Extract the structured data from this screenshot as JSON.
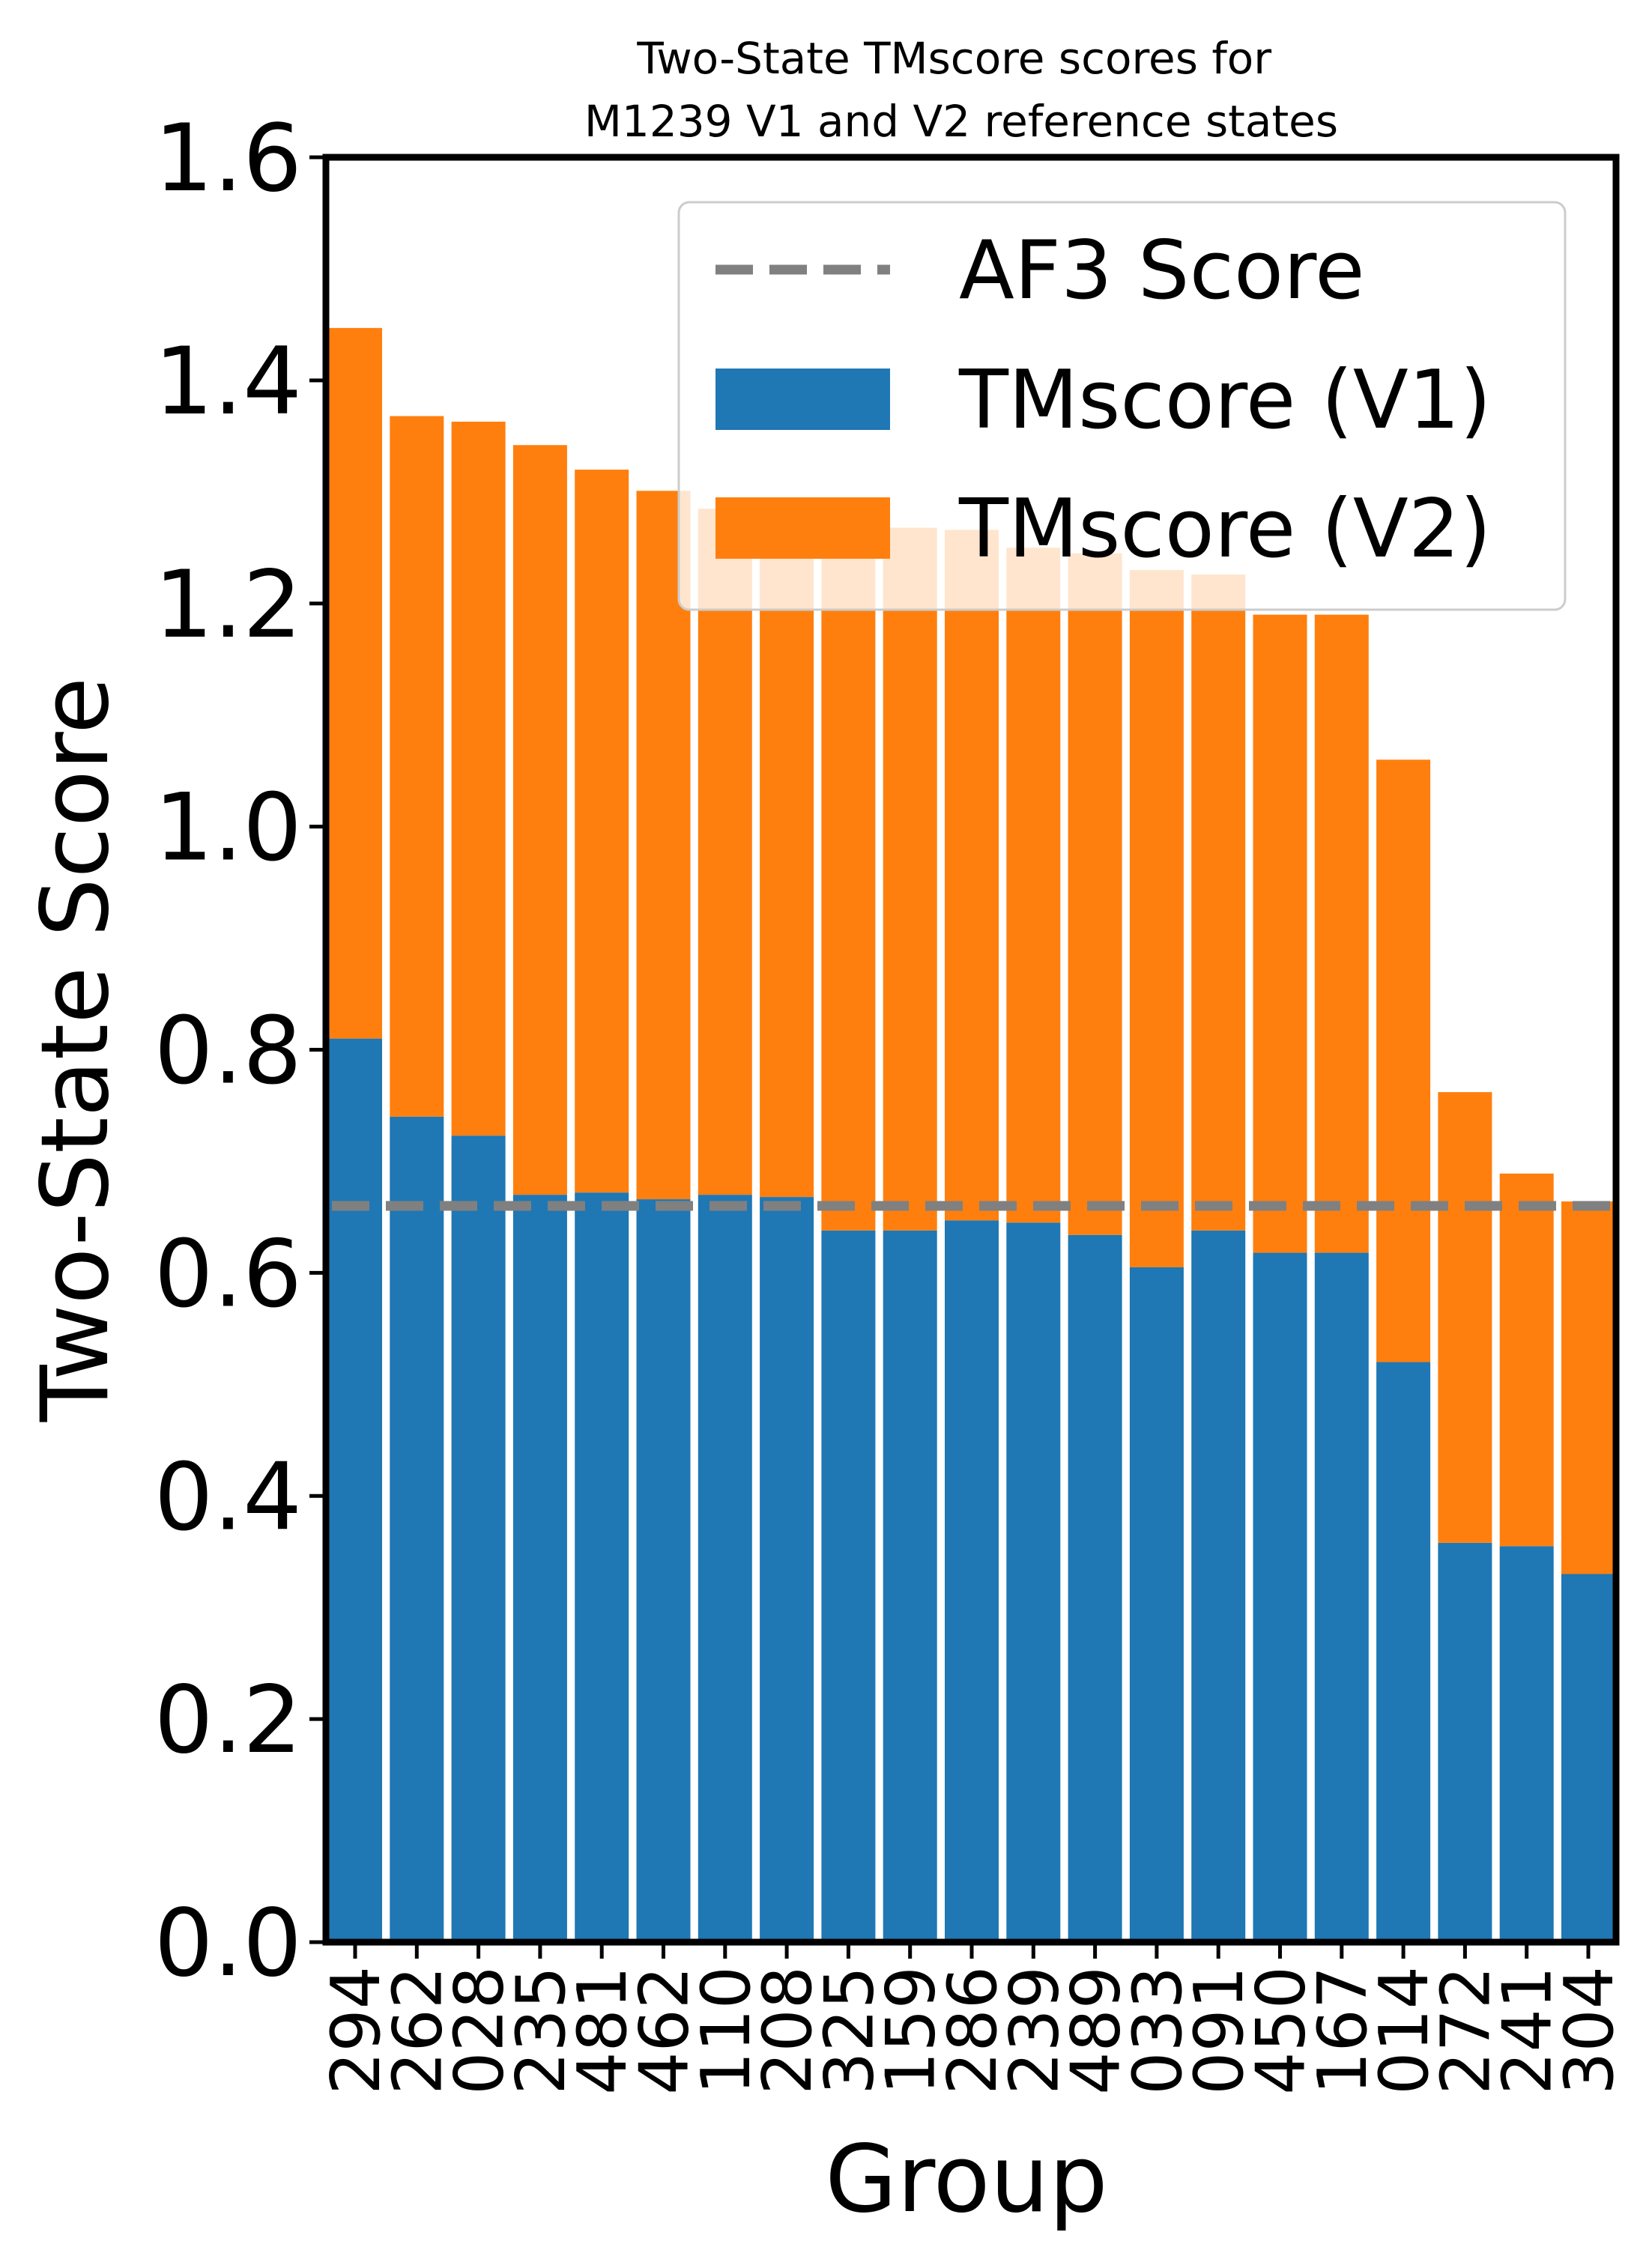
{
  "chart_data": {
    "type": "bar",
    "stacked": true,
    "title": "Two-State TMscore scores for\nM1239 V1 and V2 reference states",
    "xlabel": "Group",
    "ylabel": "Two-State Score",
    "ylim": [
      0,
      1.6
    ],
    "yticks": [
      "0.0",
      "0.2",
      "0.4",
      "0.6",
      "0.8",
      "1.0",
      "1.2",
      "1.4",
      "1.6"
    ],
    "grid": false,
    "legend_position": "top-right",
    "categories": [
      "294",
      "262",
      "028",
      "235",
      "481",
      "462",
      "110",
      "208",
      "325",
      "159",
      "286",
      "239",
      "489",
      "033",
      "091",
      "450",
      "167",
      "014",
      "272",
      "241",
      "304"
    ],
    "series": [
      {
        "name": "TMscore (V1)",
        "color": "#1f77b4",
        "values": [
          0.81,
          0.74,
          0.723,
          0.67,
          0.672,
          0.666,
          0.67,
          0.668,
          0.638,
          0.638,
          0.647,
          0.645,
          0.634,
          0.605,
          0.638,
          0.618,
          0.618,
          0.52,
          0.358,
          0.355,
          0.33
        ]
      },
      {
        "name": "TMscore (V2)",
        "color": "#ff7f0e",
        "values": [
          0.637,
          0.628,
          0.64,
          0.672,
          0.648,
          0.635,
          0.615,
          0.6,
          0.63,
          0.63,
          0.619,
          0.605,
          0.611,
          0.625,
          0.588,
          0.572,
          0.572,
          0.54,
          0.404,
          0.334,
          0.334
        ]
      }
    ],
    "reference_line": {
      "name": "AF3 Score",
      "value": 0.66,
      "color": "#808080",
      "style": "dashed"
    }
  }
}
